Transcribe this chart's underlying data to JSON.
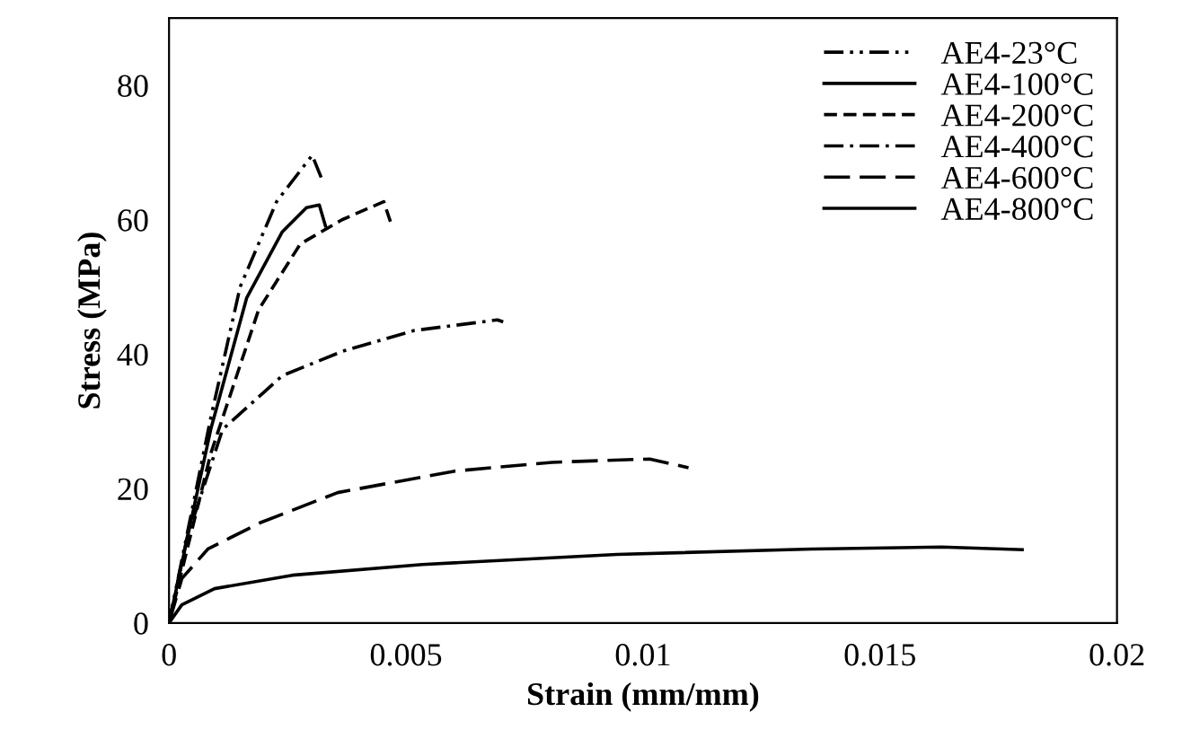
{
  "chart_data": {
    "type": "line",
    "xlabel": "Strain (mm/mm)",
    "ylabel": "Stress (MPa)",
    "xlim": [
      0,
      0.02
    ],
    "xticks": [
      0,
      0.005,
      0.01,
      0.015,
      0.02
    ],
    "ylim": [
      0,
      90
    ],
    "yticks": [
      0,
      20,
      40,
      60,
      80
    ],
    "grid": false,
    "legend": "top right",
    "marker": "none",
    "series": [
      {
        "name": "AE4-23°C",
        "color": "#000000",
        "line_style": "dashdotdot",
        "x": [
          0,
          0.00088,
          0.0015,
          0.00227,
          0.00302,
          0.00321
        ],
        "values": [
          0,
          30.5,
          50,
          62.7,
          69.6,
          66.3
        ]
      },
      {
        "name": "AE4-100°C",
        "color": "#000000",
        "line_style": "solid",
        "x": [
          0,
          0.00088,
          0.00164,
          0.00239,
          0.0029,
          0.00317,
          0.0033
        ],
        "values": [
          0,
          28.8,
          48.4,
          58.2,
          61.8,
          62.2,
          59.1
        ]
      },
      {
        "name": "AE4-200°C",
        "color": "#000000",
        "line_style": "dashed",
        "x": [
          0,
          0.00088,
          0.00189,
          0.00277,
          0.00365,
          0.00453,
          0.0047
        ],
        "values": [
          0,
          25.2,
          46.6,
          56.4,
          60,
          62.7,
          59.1
        ]
      },
      {
        "name": "AE4-400°C",
        "color": "#000000",
        "line_style": "dashdot",
        "x": [
          0,
          0.00038,
          0.00113,
          0.00239,
          0.00365,
          0.00516,
          0.00693,
          0.00705
        ],
        "values": [
          0,
          12.7,
          28.8,
          36.8,
          40.4,
          43.5,
          45.1,
          44.8
        ]
      },
      {
        "name": "AE4-600°C",
        "color": "#000000",
        "line_style": "longdash",
        "x": [
          0,
          0.00027,
          0.00082,
          0.00192,
          0.00356,
          0.00603,
          0.00808,
          0.01014,
          0.01096
        ],
        "values": [
          0,
          6.6,
          11,
          14.9,
          19.4,
          22.6,
          23.9,
          24.4,
          23.1
        ]
      },
      {
        "name": "AE4-800°C",
        "color": "#000000",
        "line_style": "solid",
        "x": [
          0,
          0.00027,
          0.00096,
          0.0026,
          0.00534,
          0.00945,
          0.01356,
          0.0163,
          0.018
        ],
        "values": [
          0,
          2.7,
          5.1,
          7.1,
          8.7,
          10.2,
          11,
          11.3,
          10.9
        ]
      }
    ]
  }
}
